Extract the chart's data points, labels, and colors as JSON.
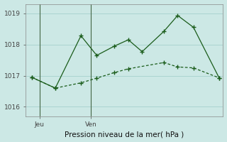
{
  "background_color": "#cce8e5",
  "grid_color": "#aad4d0",
  "line_color": "#1a5c1a",
  "title": "Pression niveau de la mer( hPa )",
  "ylim": [
    1015.7,
    1019.3
  ],
  "yticks": [
    1016,
    1017,
    1018,
    1019
  ],
  "xlim": [
    0,
    10
  ],
  "series1_x": [
    0.3,
    1.5,
    2.8,
    3.6,
    4.5,
    5.2,
    5.9,
    7.0,
    7.7,
    8.5,
    9.8
  ],
  "series1_y": [
    1016.95,
    1016.6,
    1018.28,
    1017.65,
    1017.95,
    1018.15,
    1017.77,
    1018.42,
    1018.93,
    1018.55,
    1016.93
  ],
  "series2_x": [
    0.3,
    1.5,
    2.8,
    3.6,
    4.5,
    5.2,
    7.0,
    7.7,
    8.5,
    9.8
  ],
  "series2_y": [
    1016.95,
    1016.6,
    1016.77,
    1016.92,
    1017.1,
    1017.22,
    1017.42,
    1017.28,
    1017.25,
    1016.93
  ],
  "vline_jeu": 0.7,
  "vline_ven": 3.3,
  "x_tick_positions": [
    0.7,
    3.3
  ],
  "x_tick_labels": [
    "Jeu",
    "Ven"
  ]
}
